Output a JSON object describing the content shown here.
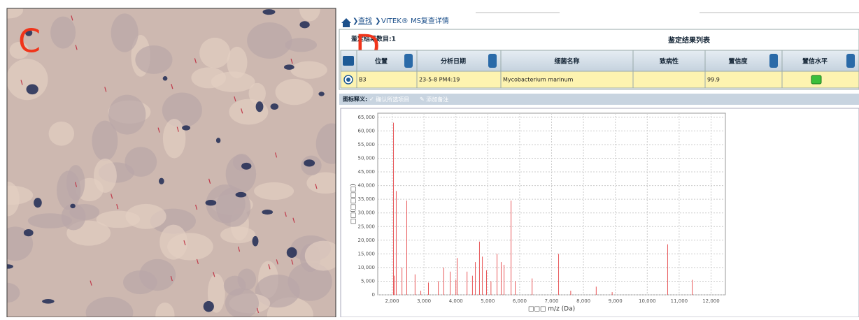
{
  "panel_labels": [
    "C",
    "D"
  ],
  "breadcrumb": {
    "link": "查找",
    "current": "VITEK® MS复查详情"
  },
  "results_bar": {
    "count": "鉴定结果数目:1",
    "title": "鉴定结果列表"
  },
  "table": {
    "headers": [
      "位置",
      "分析日期",
      "细菌名称",
      "致病性",
      "置信度",
      "置信水平"
    ],
    "rows": [
      {
        "position": "B3",
        "date": "23-5-8 PM4:19",
        "name": "Mycobacterium marinum",
        "confidence": "99.9"
      }
    ]
  },
  "legend_bar": {
    "label": "图标释义:",
    "confirm": "确认所选项目",
    "note": "添加备注"
  },
  "chart_data": {
    "type": "stem",
    "x_label": "□□□ m/z (Da)",
    "y_label": "□□(□□□□)",
    "color": "#e8585a",
    "grid": true,
    "x": [
      2044,
      2070,
      2130,
      2310,
      2460,
      2720,
      2900,
      3140,
      3450,
      3620,
      3820,
      4000,
      4040,
      4350,
      4520,
      4610,
      4740,
      4830,
      4960,
      5100,
      5290,
      5420,
      5510,
      5730,
      5860,
      6390,
      7220,
      7600,
      8400,
      8900,
      10640,
      11410
    ],
    "values": [
      63000,
      7000,
      38000,
      10000,
      34500,
      7500,
      1500,
      4500,
      5000,
      10000,
      8500,
      5500,
      13500,
      8500,
      7000,
      12000,
      19500,
      14000,
      9000,
      5000,
      15000,
      12000,
      11000,
      34500,
      5000,
      6000,
      15000,
      1500,
      3000,
      1000,
      18500,
      5500
    ],
    "xlim": [
      1550,
      12450
    ],
    "ylim": [
      0,
      66500
    ],
    "xticks": [
      {
        "value": 2000,
        "label": "2,000"
      },
      {
        "value": 3000,
        "label": "3,000"
      },
      {
        "value": 4000,
        "label": "4,000"
      },
      {
        "value": 5000,
        "label": "5,000"
      },
      {
        "value": 6000,
        "label": "6,000"
      },
      {
        "value": 7000,
        "label": "7,000"
      },
      {
        "value": 8000,
        "label": "8,000"
      },
      {
        "value": 9000,
        "label": "9,000"
      },
      {
        "value": 10000,
        "label": "10,000"
      },
      {
        "value": 11000,
        "label": "11,000"
      },
      {
        "value": 12000,
        "label": "12,000"
      }
    ],
    "yticks": [
      0,
      {
        "value": 5000,
        "label": "5,000"
      },
      {
        "value": 10000,
        "label": "10,000"
      },
      {
        "value": 15000,
        "label": "15,000"
      },
      {
        "value": 20000,
        "label": "20,000"
      },
      {
        "value": 25000,
        "label": "25,000"
      },
      {
        "value": 30000,
        "label": "30,000"
      },
      {
        "value": 35000,
        "label": "35,000"
      },
      {
        "value": 40000,
        "label": "40,000"
      },
      {
        "value": 45000,
        "label": "45,000"
      },
      {
        "value": 50000,
        "label": "50,000"
      },
      {
        "value": 55000,
        "label": "55,000"
      },
      {
        "value": 60000,
        "label": "60,000"
      },
      {
        "value": 65000,
        "label": "65,000"
      }
    ]
  }
}
